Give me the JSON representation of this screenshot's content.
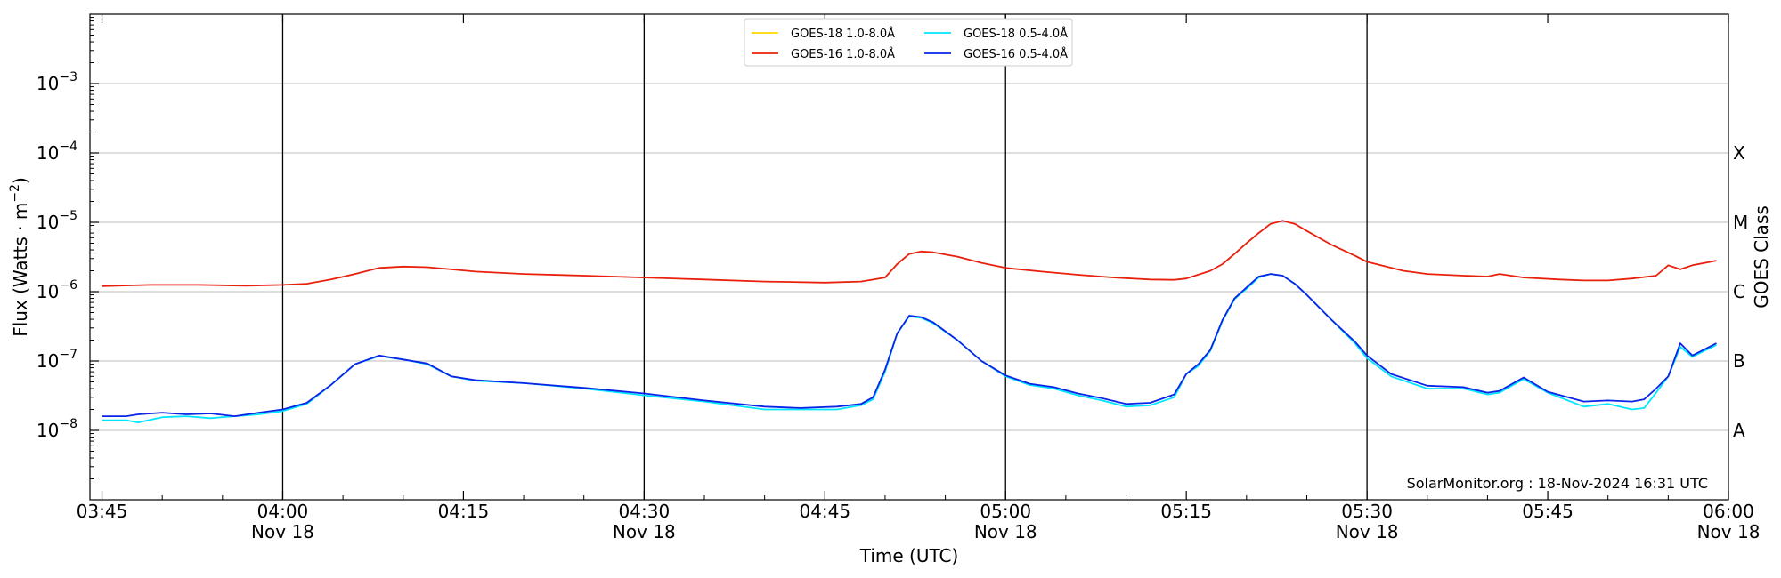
{
  "chart_data": {
    "type": "line",
    "xlabel": "Time (UTC)",
    "ylabel": "Flux (Watts · m⁻²)",
    "y2label": "GOES Class",
    "y_scale": "log",
    "ylim": [
      1e-09,
      0.01
    ],
    "xlim": [
      "03:44",
      "06:00"
    ],
    "grid": "horizontal at decades",
    "legend_position": "top-center",
    "credit": "SolarMonitor.org : 18-Nov-2024 16:31 UTC",
    "x_ticks": [
      {
        "t": "03:45",
        "label": "03:45",
        "sub": ""
      },
      {
        "t": "04:00",
        "label": "04:00",
        "sub": "Nov 18"
      },
      {
        "t": "04:15",
        "label": "04:15",
        "sub": ""
      },
      {
        "t": "04:30",
        "label": "04:30",
        "sub": "Nov 18"
      },
      {
        "t": "04:45",
        "label": "04:45",
        "sub": ""
      },
      {
        "t": "05:00",
        "label": "05:00",
        "sub": "Nov 18"
      },
      {
        "t": "05:15",
        "label": "05:15",
        "sub": ""
      },
      {
        "t": "05:30",
        "label": "05:30",
        "sub": "Nov 18"
      },
      {
        "t": "05:45",
        "label": "05:45",
        "sub": ""
      },
      {
        "t": "06:00",
        "label": "06:00",
        "sub": "Nov 18"
      }
    ],
    "vertical_lines": [
      "04:00",
      "04:30",
      "05:00",
      "05:30"
    ],
    "y_ticks": [
      {
        "exp": -8,
        "label": "10",
        "sup": "−8"
      },
      {
        "exp": -7,
        "label": "10",
        "sup": "−7"
      },
      {
        "exp": -6,
        "label": "10",
        "sup": "−6"
      },
      {
        "exp": -5,
        "label": "10",
        "sup": "−5"
      },
      {
        "exp": -4,
        "label": "10",
        "sup": "−4"
      },
      {
        "exp": -3,
        "label": "10",
        "sup": "−3"
      }
    ],
    "goes_classes": [
      {
        "label": "A",
        "value": 1e-08
      },
      {
        "label": "B",
        "value": 1e-07
      },
      {
        "label": "C",
        "value": 1e-06
      },
      {
        "label": "M",
        "value": 1e-05
      },
      {
        "label": "X",
        "value": 0.0001
      }
    ],
    "series": [
      {
        "name": "GOES-18 1.0-8.0Å",
        "color": "#ffd700",
        "x": [],
        "values": []
      },
      {
        "name": "GOES-16 1.0-8.0Å",
        "color": "#e8200c",
        "x": [
          "03:45",
          "03:49",
          "03:53",
          "03:57",
          "04:00",
          "04:02",
          "04:04",
          "04:06",
          "04:08",
          "04:10",
          "04:12",
          "04:14",
          "04:16",
          "04:20",
          "04:25",
          "04:30",
          "04:35",
          "04:40",
          "04:45",
          "04:48",
          "04:50",
          "04:51",
          "04:52",
          "04:53",
          "04:54",
          "04:56",
          "04:58",
          "05:00",
          "05:03",
          "05:06",
          "05:09",
          "05:12",
          "05:14",
          "05:15",
          "05:17",
          "05:18",
          "05:19",
          "05:20",
          "05:21",
          "05:22",
          "05:23",
          "05:24",
          "05:25",
          "05:27",
          "05:29",
          "05:30",
          "05:33",
          "05:35",
          "05:38",
          "05:40",
          "05:41",
          "05:43",
          "05:46",
          "05:48",
          "05:50",
          "05:52",
          "05:54",
          "05:55",
          "05:56",
          "05:57",
          "05:59"
        ],
        "values": [
          1.2e-06,
          1.25e-06,
          1.25e-06,
          1.22e-06,
          1.25e-06,
          1.3e-06,
          1.5e-06,
          1.8e-06,
          2.2e-06,
          2.3e-06,
          2.25e-06,
          2.1e-06,
          1.95e-06,
          1.8e-06,
          1.7e-06,
          1.6e-06,
          1.5e-06,
          1.4e-06,
          1.35e-06,
          1.4e-06,
          1.6e-06,
          2.5e-06,
          3.5e-06,
          3.8e-06,
          3.7e-06,
          3.2e-06,
          2.6e-06,
          2.2e-06,
          1.95e-06,
          1.75e-06,
          1.6e-06,
          1.5e-06,
          1.48e-06,
          1.55e-06,
          2e-06,
          2.5e-06,
          3.5e-06,
          5e-06,
          7e-06,
          9.5e-06,
          1.05e-05,
          9.5e-06,
          7.5e-06,
          4.8e-06,
          3.3e-06,
          2.7e-06,
          2e-06,
          1.8e-06,
          1.7e-06,
          1.65e-06,
          1.8e-06,
          1.6e-06,
          1.5e-06,
          1.45e-06,
          1.45e-06,
          1.55e-06,
          1.7e-06,
          2.4e-06,
          2.1e-06,
          2.4e-06,
          2.8e-06
        ]
      },
      {
        "name": "GOES-18 0.5-4.0Å",
        "color": "#00e5ff",
        "x": [
          "03:45",
          "03:47",
          "03:48",
          "03:50",
          "03:52",
          "03:54",
          "03:56",
          "03:58",
          "04:00",
          "04:02",
          "04:04",
          "04:06",
          "04:08",
          "04:10",
          "04:12",
          "04:14",
          "04:16",
          "04:20",
          "04:25",
          "04:30",
          "04:35",
          "04:40",
          "04:43",
          "04:46",
          "04:48",
          "04:49",
          "04:50",
          "04:51",
          "04:52",
          "04:53",
          "04:54",
          "04:56",
          "04:58",
          "05:00",
          "05:02",
          "05:04",
          "05:06",
          "05:08",
          "05:10",
          "05:12",
          "05:14",
          "05:15",
          "05:16",
          "05:17",
          "05:18",
          "05:19",
          "05:20",
          "05:21",
          "05:22",
          "05:23",
          "05:24",
          "05:25",
          "05:27",
          "05:29",
          "05:30",
          "05:32",
          "05:35",
          "05:38",
          "05:40",
          "05:41",
          "05:43",
          "05:45",
          "05:48",
          "05:50",
          "05:52",
          "05:53",
          "05:54",
          "05:55",
          "05:56",
          "05:57",
          "05:59"
        ],
        "values": [
          1.4e-08,
          1.4e-08,
          1.3e-08,
          1.55e-08,
          1.6e-08,
          1.5e-08,
          1.6e-08,
          1.7e-08,
          1.9e-08,
          2.4e-08,
          4.5e-08,
          9e-08,
          1.18e-07,
          1.05e-07,
          9e-08,
          6e-08,
          5.2e-08,
          4.8e-08,
          4e-08,
          3.2e-08,
          2.6e-08,
          2e-08,
          2e-08,
          2e-08,
          2.3e-08,
          2.8e-08,
          7e-08,
          2.5e-07,
          4.4e-07,
          4.2e-07,
          3.5e-07,
          2e-07,
          1e-07,
          6e-08,
          4.5e-08,
          4e-08,
          3.2e-08,
          2.7e-08,
          2.2e-08,
          2.3e-08,
          3e-08,
          6.5e-08,
          8.5e-08,
          1.4e-07,
          3.8e-07,
          7.8e-07,
          1.1e-06,
          1.6e-06,
          1.8e-06,
          1.7e-06,
          1.3e-06,
          9e-07,
          4e-07,
          1.8e-07,
          1.1e-07,
          6e-08,
          4e-08,
          4e-08,
          3.3e-08,
          3.5e-08,
          5.5e-08,
          3.5e-08,
          2.2e-08,
          2.4e-08,
          2e-08,
          2.1e-08,
          3.5e-08,
          6e-08,
          1.6e-07,
          1.15e-07,
          1.7e-07
        ]
      },
      {
        "name": "GOES-16 0.5-4.0Å",
        "color": "#0a24e8",
        "x": [
          "03:45",
          "03:47",
          "03:48",
          "03:50",
          "03:52",
          "03:54",
          "03:56",
          "03:58",
          "04:00",
          "04:02",
          "04:04",
          "04:06",
          "04:08",
          "04:10",
          "04:12",
          "04:14",
          "04:16",
          "04:20",
          "04:25",
          "04:30",
          "04:35",
          "04:40",
          "04:43",
          "04:46",
          "04:48",
          "04:49",
          "04:50",
          "04:51",
          "04:52",
          "04:53",
          "04:54",
          "04:56",
          "04:58",
          "05:00",
          "05:02",
          "05:04",
          "05:06",
          "05:08",
          "05:10",
          "05:12",
          "05:14",
          "05:15",
          "05:16",
          "05:17",
          "05:18",
          "05:19",
          "05:20",
          "05:21",
          "05:22",
          "05:23",
          "05:24",
          "05:25",
          "05:27",
          "05:29",
          "05:30",
          "05:32",
          "05:35",
          "05:38",
          "05:40",
          "05:41",
          "05:43",
          "05:45",
          "05:48",
          "05:50",
          "05:52",
          "05:53",
          "05:54",
          "05:55",
          "05:56",
          "05:57",
          "05:59"
        ],
        "values": [
          1.6e-08,
          1.6e-08,
          1.7e-08,
          1.8e-08,
          1.7e-08,
          1.75e-08,
          1.6e-08,
          1.8e-08,
          2e-08,
          2.5e-08,
          4.5e-08,
          9e-08,
          1.2e-07,
          1.05e-07,
          9.2e-08,
          6e-08,
          5.3e-08,
          4.8e-08,
          4.1e-08,
          3.4e-08,
          2.7e-08,
          2.2e-08,
          2.1e-08,
          2.2e-08,
          2.4e-08,
          3e-08,
          7.5e-08,
          2.5e-07,
          4.5e-07,
          4.3e-07,
          3.6e-07,
          2e-07,
          1e-07,
          6.2e-08,
          4.7e-08,
          4.2e-08,
          3.4e-08,
          2.9e-08,
          2.4e-08,
          2.5e-08,
          3.3e-08,
          6.5e-08,
          9e-08,
          1.45e-07,
          3.9e-07,
          8e-07,
          1.15e-06,
          1.65e-06,
          1.8e-06,
          1.7e-06,
          1.3e-06,
          9e-07,
          4e-07,
          1.9e-07,
          1.2e-07,
          6.5e-08,
          4.4e-08,
          4.2e-08,
          3.5e-08,
          3.7e-08,
          5.8e-08,
          3.6e-08,
          2.6e-08,
          2.7e-08,
          2.6e-08,
          2.8e-08,
          4e-08,
          6e-08,
          1.8e-07,
          1.2e-07,
          1.8e-07
        ]
      }
    ]
  }
}
